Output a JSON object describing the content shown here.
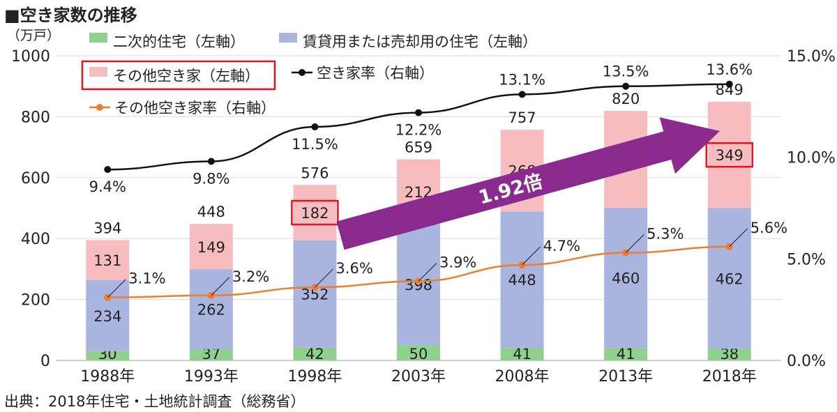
{
  "title": "■空き家数の推移",
  "source": "出典：2018年住宅・土地統計調査（総務省）",
  "chart_data": {
    "type": "bar",
    "stacked": true,
    "categories": [
      "1988年",
      "1993年",
      "1998年",
      "2003年",
      "2008年",
      "2013年",
      "2018年"
    ],
    "left_axis": {
      "unit_label": "（万戸）",
      "ylim": [
        0,
        1000
      ],
      "ticks": [
        "0",
        "200",
        "400",
        "600",
        "800",
        "1000"
      ]
    },
    "right_axis": {
      "ylim": [
        0,
        15
      ],
      "ticks": [
        "0.0%",
        "5.0%",
        "10.0%",
        "15.0%"
      ]
    },
    "series": [
      {
        "name": "二次的住宅（左軸）",
        "color": "#8fd08f",
        "values": [
          30,
          37,
          42,
          50,
          41,
          41,
          38
        ]
      },
      {
        "name": "賃貸用または売却用の住宅（左軸）",
        "color": "#a9b4df",
        "values": [
          234,
          262,
          352,
          398,
          448,
          460,
          462
        ]
      },
      {
        "name": "その他空き家（左軸）",
        "color": "#f7bcbf",
        "values": [
          131,
          149,
          182,
          212,
          268,
          318,
          349
        ]
      }
    ],
    "totals": [
      394,
      448,
      576,
      659,
      757,
      820,
      849
    ],
    "lines": [
      {
        "name": "空き家率（右軸）",
        "color": "#111111",
        "values": [
          9.4,
          9.8,
          11.5,
          12.2,
          13.1,
          13.5,
          13.6
        ],
        "labels": [
          "9.4%",
          "9.8%",
          "11.5%",
          "12.2%",
          "13.1%",
          "13.5%",
          "13.6%"
        ]
      },
      {
        "name": "その他空き家率（右軸）",
        "color": "#ed7d31",
        "values": [
          3.1,
          3.2,
          3.6,
          3.9,
          4.7,
          5.3,
          5.6
        ],
        "labels": [
          "3.1%",
          "3.2%",
          "3.6%",
          "3.9%",
          "4.7%",
          "5.3%",
          "5.6%"
        ]
      }
    ],
    "annotation": {
      "text": "1.92倍",
      "from_category": "1998年",
      "to_category": "2018年",
      "color": "#8a2a8f",
      "highlight_color": "#e0151c"
    },
    "grid": true,
    "legend": "top-left"
  }
}
